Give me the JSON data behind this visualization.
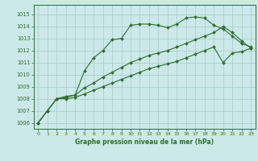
{
  "title": "Graphe pression niveau de la mer (hPa)",
  "background_color": "#cce8e8",
  "grid_color": "#a8cccc",
  "line_color": "#2d6e2d",
  "xlim": [
    -0.5,
    23.5
  ],
  "ylim": [
    1005.5,
    1015.8
  ],
  "yticks": [
    1006,
    1007,
    1008,
    1009,
    1010,
    1011,
    1012,
    1013,
    1014,
    1015
  ],
  "xticks": [
    0,
    1,
    2,
    3,
    4,
    5,
    6,
    7,
    8,
    9,
    10,
    11,
    12,
    13,
    14,
    15,
    16,
    17,
    18,
    19,
    20,
    21,
    22,
    23
  ],
  "line1_x": [
    0,
    1,
    2,
    3,
    4,
    5,
    6,
    7,
    8,
    9,
    10,
    11,
    12,
    13,
    14,
    15,
    16,
    17,
    18,
    19,
    20,
    21,
    22,
    23
  ],
  "line1_y": [
    1006.0,
    1007.0,
    1008.0,
    1008.2,
    1008.3,
    1010.3,
    1011.4,
    1012.0,
    1012.9,
    1013.0,
    1014.1,
    1014.2,
    1014.2,
    1014.1,
    1013.9,
    1014.2,
    1014.7,
    1014.8,
    1014.7,
    1014.1,
    1013.8,
    1013.2,
    1012.6,
    1012.3
  ],
  "line2_x": [
    0,
    1,
    2,
    3,
    4,
    5,
    6,
    7,
    8,
    9,
    10,
    11,
    12,
    13,
    14,
    15,
    16,
    17,
    18,
    19,
    20,
    21,
    22,
    23
  ],
  "line2_y": [
    1006.0,
    1007.0,
    1008.0,
    1008.1,
    1008.3,
    1008.9,
    1009.3,
    1009.8,
    1010.2,
    1010.6,
    1011.0,
    1011.3,
    1011.6,
    1011.8,
    1012.0,
    1012.3,
    1012.6,
    1012.9,
    1013.2,
    1013.5,
    1014.0,
    1013.5,
    1012.8,
    1012.2
  ],
  "line3_x": [
    0,
    1,
    2,
    3,
    4,
    5,
    6,
    7,
    8,
    9,
    10,
    11,
    12,
    13,
    14,
    15,
    16,
    17,
    18,
    19,
    20,
    21,
    22,
    23
  ],
  "line3_y": [
    1006.0,
    1007.0,
    1008.0,
    1008.0,
    1008.1,
    1008.4,
    1008.7,
    1009.0,
    1009.3,
    1009.6,
    1009.9,
    1010.2,
    1010.5,
    1010.7,
    1010.9,
    1011.1,
    1011.4,
    1011.7,
    1012.0,
    1012.3,
    1011.0,
    1011.8,
    1011.9,
    1012.2
  ],
  "figsize": [
    3.2,
    2.0
  ],
  "dpi": 100
}
